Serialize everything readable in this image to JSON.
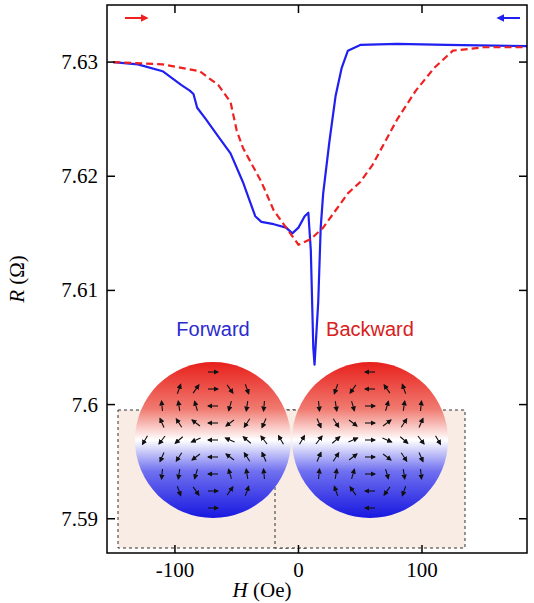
{
  "chart_data": {
    "type": "line",
    "x_label": "H (Oe)",
    "y_label": "R (Ω)",
    "xlim": [
      -155,
      185
    ],
    "ylim": [
      7.587,
      7.635
    ],
    "xticks": [
      -100,
      0,
      100
    ],
    "yticks": [
      7.59,
      7.6,
      7.61,
      7.62,
      7.63
    ],
    "grid": false,
    "annotations": [
      {
        "text": "Forward",
        "color": "#2a2ad0"
      },
      {
        "text": "Backward",
        "color": "#d82020"
      }
    ],
    "series": [
      {
        "name": "Forward",
        "color": "#2020f0",
        "line_style": "solid",
        "x": [
          -150,
          -130,
          -110,
          -95,
          -88,
          -85,
          -82,
          -75,
          -65,
          -55,
          -45,
          -40,
          -35,
          -30,
          -20,
          -10,
          -5,
          0,
          5,
          8,
          10,
          12,
          13,
          16,
          18,
          20,
          25,
          30,
          35,
          40,
          50,
          80,
          120,
          185
        ],
        "values": [
          7.63,
          7.6298,
          7.6292,
          7.628,
          7.6275,
          7.6272,
          7.626,
          7.625,
          7.6235,
          7.622,
          7.6195,
          7.618,
          7.6165,
          7.616,
          7.6158,
          7.6155,
          7.615,
          7.6155,
          7.6165,
          7.6168,
          7.6135,
          7.605,
          7.6035,
          7.609,
          7.6155,
          7.6185,
          7.623,
          7.627,
          7.6295,
          7.631,
          7.6315,
          7.6316,
          7.6315,
          7.6314
        ]
      },
      {
        "name": "Backward",
        "color": "#f02020",
        "line_style": "dashed",
        "x": [
          -150,
          -110,
          -80,
          -65,
          -55,
          -50,
          -45,
          -40,
          -30,
          -20,
          -10,
          0,
          10,
          20,
          30,
          40,
          50,
          60,
          70,
          80,
          95,
          110,
          125,
          150,
          185
        ],
        "values": [
          7.63,
          7.6298,
          7.6292,
          7.628,
          7.6265,
          7.624,
          7.6225,
          7.6215,
          7.6195,
          7.617,
          7.6155,
          7.614,
          7.6145,
          7.6155,
          7.617,
          7.6185,
          7.6195,
          7.621,
          7.623,
          7.625,
          7.6275,
          7.6295,
          7.631,
          7.6313,
          7.6313
        ]
      }
    ]
  }
}
